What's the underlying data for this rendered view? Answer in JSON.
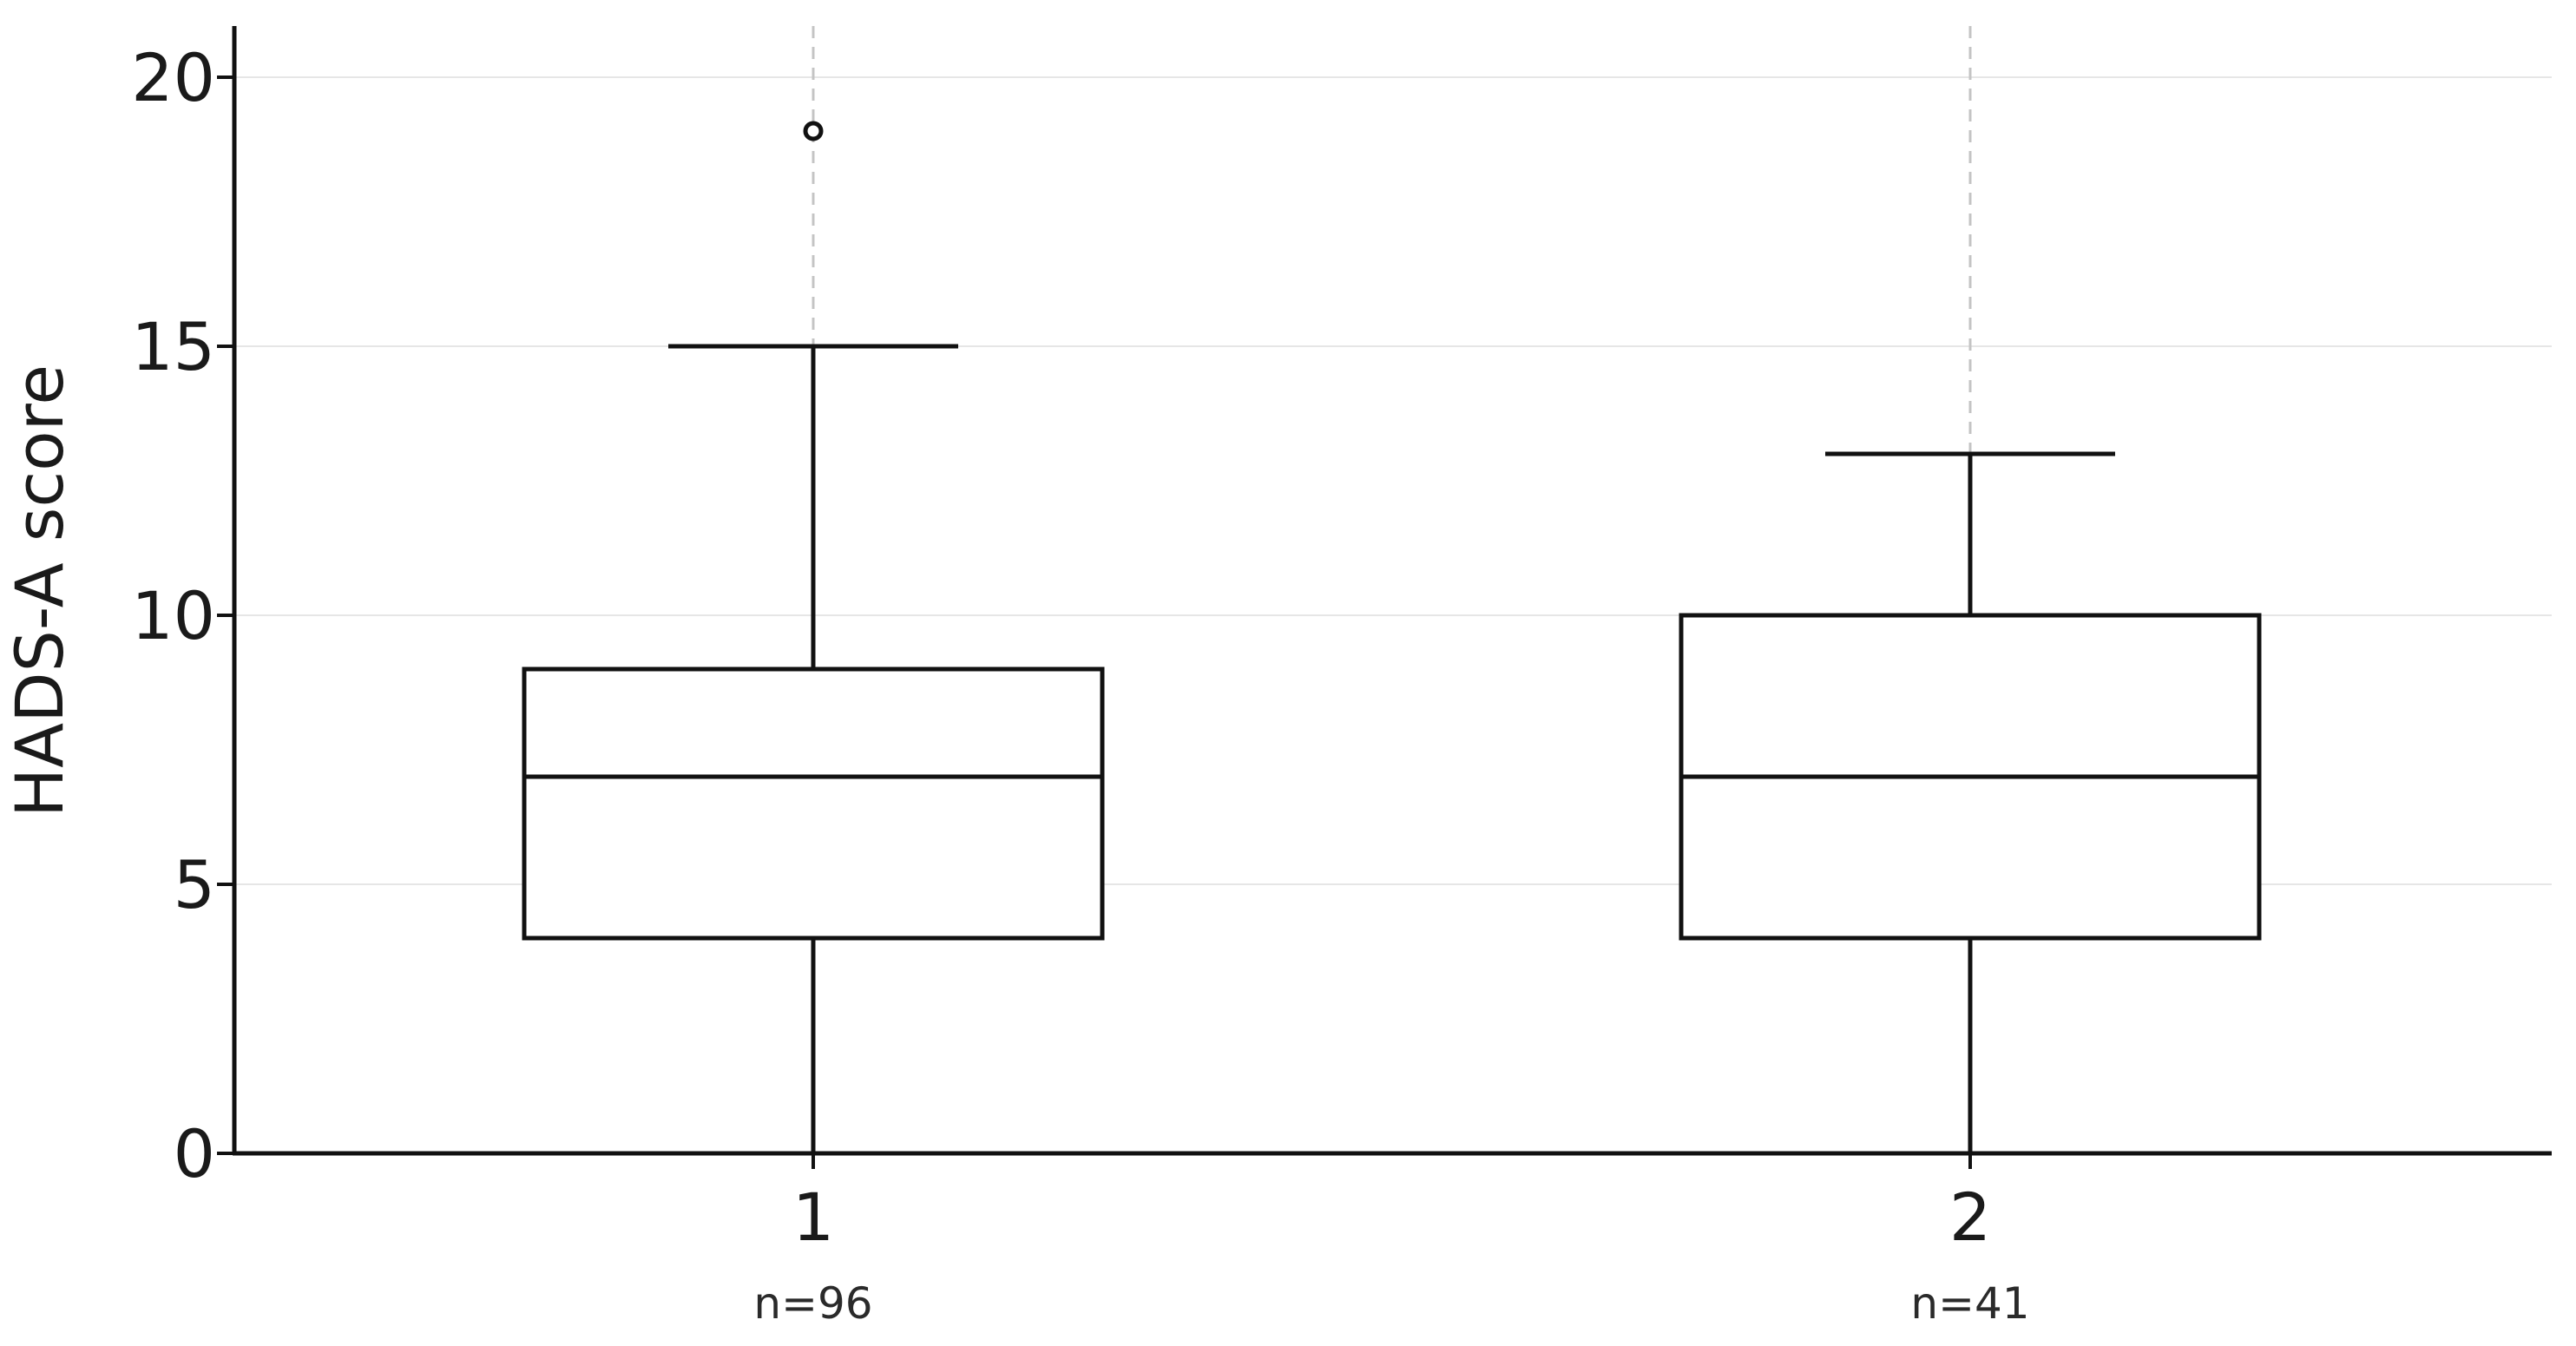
{
  "chart_data": {
    "type": "box",
    "title": "",
    "xlabel": "",
    "ylabel": "HADS-A score",
    "ylim": [
      0,
      21
    ],
    "yticks": [
      0,
      5,
      10,
      15,
      20
    ],
    "grid": "horizontal",
    "categories": [
      "1",
      "2"
    ],
    "sample_sizes": [
      "n=96",
      "n=41"
    ],
    "boxes": [
      {
        "category": "1",
        "whisker_low": 0,
        "q1": 4,
        "median": 7,
        "q3": 9,
        "whisker_high": 15,
        "outliers": [
          19
        ]
      },
      {
        "category": "2",
        "whisker_low": 0,
        "q1": 4,
        "median": 7,
        "q3": 10,
        "whisker_high": 13,
        "outliers": []
      }
    ],
    "colors": {
      "box_stroke": "#111111",
      "box_fill": "#ffffff",
      "grid": "#e6e6e6",
      "dashed_guide": "#c4c4c4",
      "axis": "#111111"
    }
  }
}
